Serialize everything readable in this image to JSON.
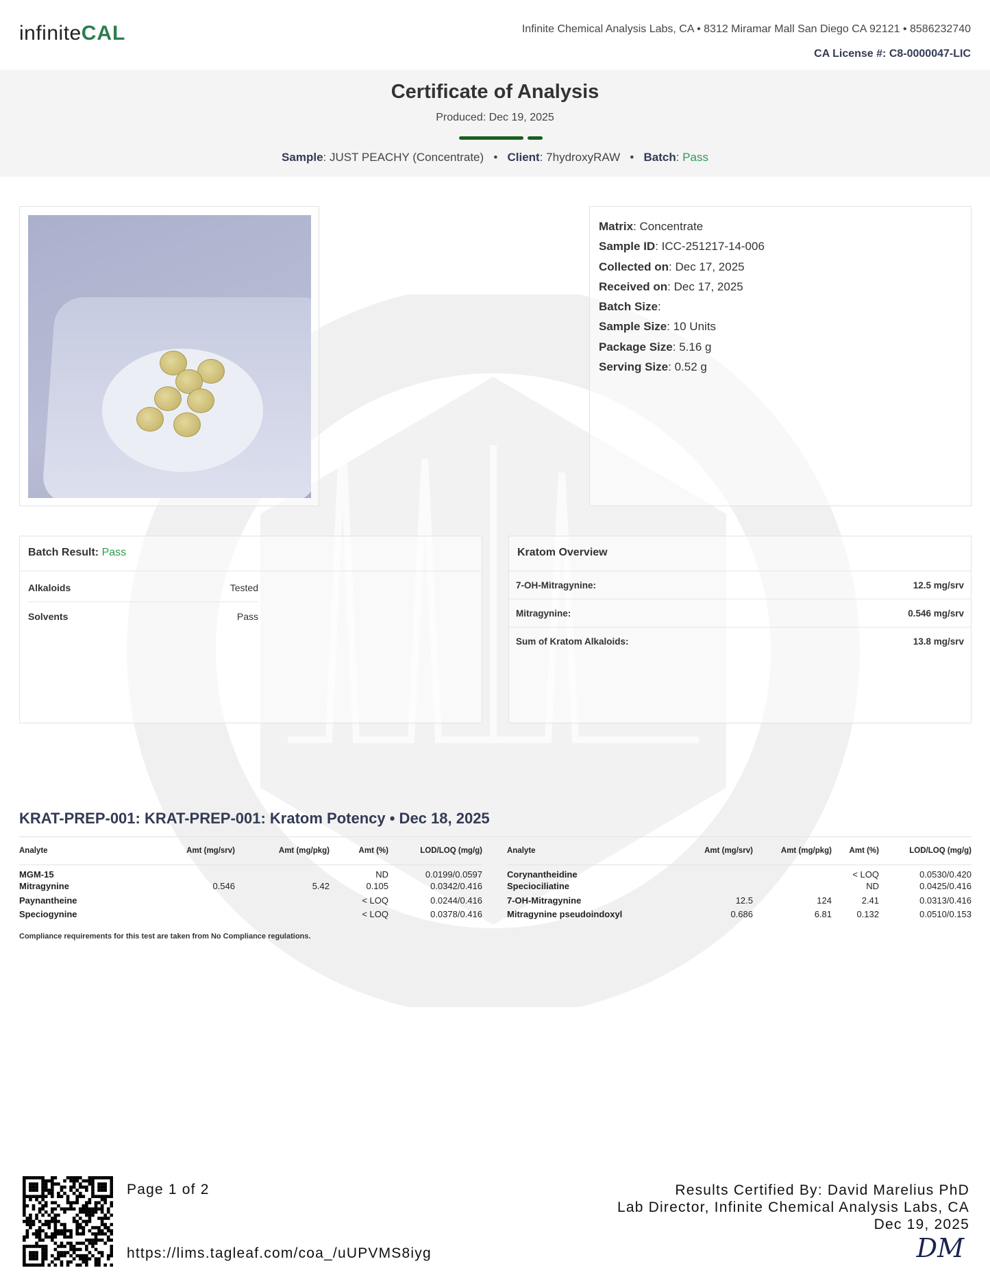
{
  "header": {
    "logo": {
      "light": "infinite",
      "bold": "CAL"
    },
    "address": "Infinite Chemical Analysis Labs, CA • 8312 Miramar Mall San Diego CA 92121 • 8586232740",
    "license": "CA License #: C8-0000047-LIC"
  },
  "title": {
    "heading": "Certificate of Analysis",
    "produced": "Produced: Dec 19, 2025"
  },
  "summary": {
    "sample_label": "Sample",
    "sample": "JUST PEACHY (Concentrate)",
    "client_label": "Client",
    "client": "7hydroxyRAW",
    "batch_label": "Batch",
    "batch": "Pass",
    "sep": "•"
  },
  "colors": {
    "accent": "#1b5e20",
    "pass": "#2e9b4f",
    "heading": "#333a55"
  },
  "info": [
    {
      "label": "Matrix",
      "value": "Concentrate"
    },
    {
      "label": "Sample ID",
      "value": "ICC-251217-14-006"
    },
    {
      "label": "Collected on",
      "value": "Dec 17, 2025"
    },
    {
      "label": "Received on",
      "value": "Dec 17, 2025"
    },
    {
      "label": "Batch Size",
      "value": ""
    },
    {
      "label": "Sample Size",
      "value": "10 Units"
    },
    {
      "label": "Package Size",
      "value": "5.16 g"
    },
    {
      "label": "Serving Size",
      "value": "0.52 g"
    }
  ],
  "batch_result": {
    "label": "Batch Result",
    "value": "Pass",
    "rows": [
      {
        "name": "Alkaloids",
        "value": "Tested"
      },
      {
        "name": "Solvents",
        "value": "Pass"
      }
    ]
  },
  "kratom_overview": {
    "title": "Kratom Overview",
    "rows": [
      {
        "name": "7-OH-Mitragynine:",
        "value": "12.5 mg/srv"
      },
      {
        "name": "Mitragynine:",
        "value": "0.546 mg/srv"
      },
      {
        "name": "Sum of Kratom Alkaloids:",
        "value": "13.8 mg/srv"
      }
    ]
  },
  "potency": {
    "heading": "KRAT-PREP-001: KRAT-PREP-001: Kratom Potency • Dec 18, 2025",
    "columns": [
      "Analyte",
      "Amt (mg/srv)",
      "Amt (mg/pkg)",
      "Amt (%)",
      "LOD/LOQ (mg/g)"
    ],
    "left": [
      [
        "MGM-15",
        "",
        "",
        "ND",
        "0.0199/0.0597"
      ],
      [
        "Mitragynine",
        "0.546",
        "5.42",
        "0.105",
        "0.0342/0.416"
      ],
      [
        "Paynantheine",
        "",
        "",
        "< LOQ",
        "0.0244/0.416"
      ],
      [
        "Speciogynine",
        "",
        "",
        "< LOQ",
        "0.0378/0.416"
      ]
    ],
    "right": [
      [
        "Corynantheidine",
        "",
        "",
        "< LOQ",
        "0.0530/0.420"
      ],
      [
        "Speciociliatine",
        "",
        "",
        "ND",
        "0.0425/0.416"
      ],
      [
        "7-OH-Mitragynine",
        "12.5",
        "124",
        "2.41",
        "0.0313/0.416"
      ],
      [
        "Mitragynine pseudoindoxyl",
        "0.686",
        "6.81",
        "0.132",
        "0.0510/0.153"
      ]
    ],
    "compliance": "Compliance requirements for this test are taken from No Compliance regulations."
  },
  "footer": {
    "page": "Page 1 of 2",
    "url": "https://lims.tagleaf.com/coa_/uUPVMS8iyg",
    "certified": "Results Certified By: David Marelius PhD",
    "title": "Lab Director, Infinite Chemical Analysis Labs, CA",
    "date": "Dec 19, 2025",
    "signature": "DM"
  }
}
